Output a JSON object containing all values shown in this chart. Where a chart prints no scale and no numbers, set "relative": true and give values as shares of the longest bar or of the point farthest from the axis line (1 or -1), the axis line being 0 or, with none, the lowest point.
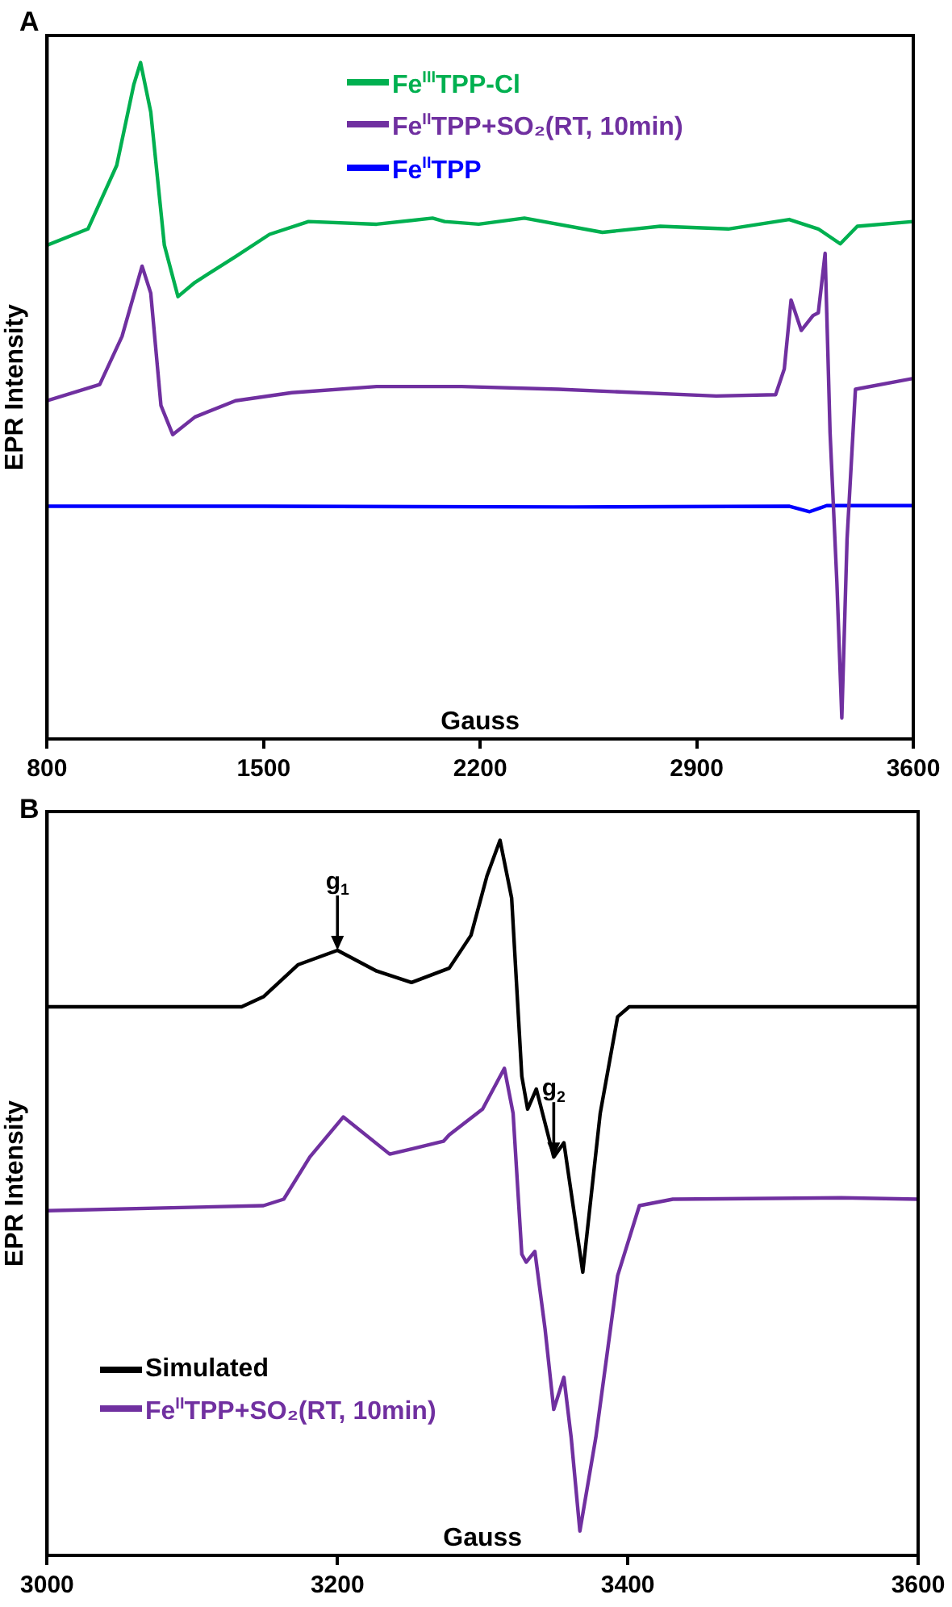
{
  "chart_data": [
    {
      "type": "line",
      "title": "A",
      "xlabel": "Gauss",
      "ylabel": "EPR Intensity",
      "relative": true,
      "xlim": [
        800,
        3600
      ],
      "xticks": [
        800,
        1500,
        2200,
        2900,
        3600
      ],
      "legend": "top",
      "grid": false,
      "marker": "none",
      "line_style": "solid",
      "series": [
        {
          "name": "Fe$^{III}$TPP-Cl",
          "color": "#00b050",
          "x": [
            800,
            932,
            1025,
            1080,
            1102,
            1135,
            1179,
            1223,
            1278,
            1409,
            1519,
            1645,
            1865,
            2046,
            2085,
            2195,
            2343,
            2595,
            2782,
            3002,
            3199,
            3293,
            3364,
            3419,
            3600
          ],
          "values": [
            0.73,
            0.754,
            0.848,
            0.967,
            1,
            0.927,
            0.73,
            0.654,
            0.675,
            0.713,
            0.746,
            0.765,
            0.761,
            0.77,
            0.765,
            0.761,
            0.77,
            0.749,
            0.758,
            0.754,
            0.768,
            0.754,
            0.732,
            0.758,
            0.765
          ]
        },
        {
          "name": "Fe$^{II}$TPP+SO₂(RT, 10min)",
          "color": "#7030a0",
          "x": [
            800,
            970,
            1042,
            1107,
            1135,
            1168,
            1206,
            1278,
            1409,
            1591,
            1865,
            2140,
            2453,
            2963,
            3155,
            3183,
            3205,
            3238,
            3276,
            3293,
            3315,
            3331,
            3353,
            3369,
            3386,
            3413,
            3600
          ],
          "values": [
            0.5,
            0.524,
            0.595,
            0.699,
            0.659,
            0.493,
            0.45,
            0.476,
            0.5,
            0.512,
            0.521,
            0.521,
            0.517,
            0.507,
            0.509,
            0.547,
            0.649,
            0.604,
            0.626,
            0.63,
            0.718,
            0.453,
            0.232,
            0.031,
            0.296,
            0.517,
            0.533
          ]
        },
        {
          "name": "Fe$^{II}$TPP",
          "color": "#0000ff",
          "x": [
            800,
            1500,
            2500,
            3200,
            3265,
            3320,
            3600
          ],
          "values": [
            0.344,
            0.344,
            0.343,
            0.344,
            0.336,
            0.345,
            0.345
          ]
        }
      ]
    },
    {
      "type": "line",
      "title": "B",
      "xlabel": "Gauss",
      "ylabel": "EPR Intensity",
      "relative": true,
      "xlim": [
        3000,
        3600
      ],
      "xticks": [
        3000,
        3200,
        3400,
        3600
      ],
      "legend": "bottom left",
      "grid": false,
      "marker": "none",
      "line_style": "solid",
      "annotations": [
        {
          "text": "g$_{1}$",
          "x": 3200,
          "y": 0.846
        },
        {
          "text": "g$_{2}$",
          "x": 3349,
          "y": 0.557
        }
      ],
      "series": [
        {
          "name": "Simulated",
          "color": "#000000",
          "x": [
            3000,
            3134,
            3149,
            3173,
            3200,
            3227,
            3251,
            3277,
            3292,
            3303,
            3312,
            3320,
            3327,
            3331,
            3337,
            3349,
            3356,
            3369,
            3381,
            3393,
            3401,
            3600
          ],
          "values": [
            0.767,
            0.767,
            0.781,
            0.826,
            0.846,
            0.817,
            0.801,
            0.821,
            0.867,
            0.95,
            1,
            0.919,
            0.67,
            0.624,
            0.652,
            0.557,
            0.577,
            0.396,
            0.618,
            0.753,
            0.767,
            0.767
          ]
        },
        {
          "name": "Fe$^{II}$TPP+SO₂(RT, 10min)",
          "color": "#7030a0",
          "x": [
            3000,
            3149,
            3163,
            3181,
            3204,
            3236,
            3273,
            3277,
            3300,
            3315,
            3321,
            3327,
            3330,
            3336,
            3343,
            3349,
            3356,
            3361,
            3367,
            3378,
            3393,
            3408,
            3431,
            3547,
            3600
          ],
          "values": [
            0.482,
            0.489,
            0.498,
            0.557,
            0.613,
            0.561,
            0.579,
            0.588,
            0.624,
            0.681,
            0.618,
            0.421,
            0.41,
            0.425,
            0.317,
            0.204,
            0.249,
            0.165,
            0.034,
            0.165,
            0.391,
            0.489,
            0.498,
            0.5,
            0.498
          ]
        }
      ]
    }
  ]
}
